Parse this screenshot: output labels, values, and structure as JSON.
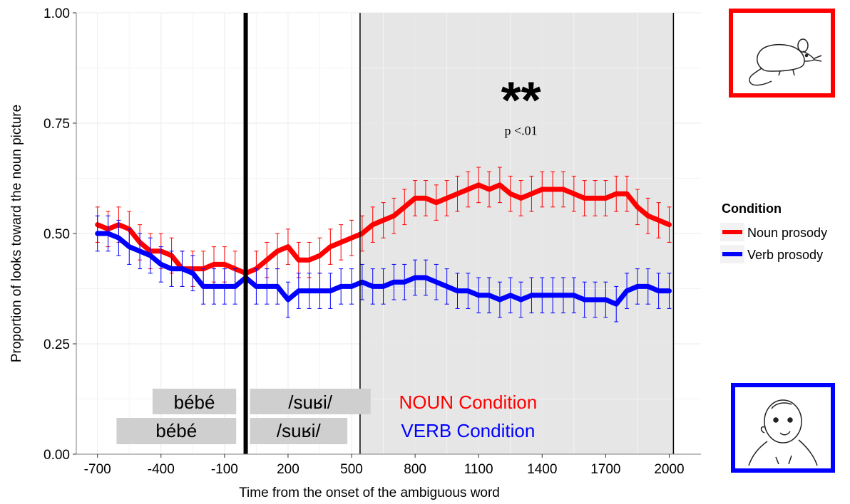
{
  "chart_data": {
    "type": "line",
    "xlabel": "Time from the onset of the ambiguous word",
    "ylabel": "Proportion of looks toward the noun picture",
    "xlim": [
      -800,
      2150
    ],
    "ylim": [
      0,
      1
    ],
    "xticks": [
      -700,
      -400,
      -100,
      200,
      500,
      800,
      1100,
      1400,
      1700,
      2000
    ],
    "yticks": [
      0,
      0.25,
      0.5,
      0.75,
      1
    ],
    "ytick_labels": [
      "0.00",
      "0.25",
      "0.50",
      "0.75",
      "1.00"
    ],
    "grid": true,
    "shaded_region": {
      "x_start": 540,
      "x_end": 2020,
      "color": "#e6e6e6"
    },
    "vertical_lines": [
      {
        "x": 0,
        "weight": "thick"
      },
      {
        "x": 540,
        "weight": "thin"
      },
      {
        "x": 2020,
        "weight": "thin"
      }
    ],
    "significance": {
      "stars": "**",
      "p_text": "p <.01",
      "x": 1300,
      "y": 0.82
    },
    "legend": {
      "title": "Condition",
      "placement": "right",
      "entries": [
        {
          "label": "Noun prosody",
          "color": "#ff0000"
        },
        {
          "label": "Verb prosody",
          "color": "#0000ff"
        }
      ]
    },
    "series": [
      {
        "name": "Noun prosody",
        "color": "#ff0000",
        "x": [
          -700,
          -650,
          -600,
          -550,
          -500,
          -450,
          -400,
          -350,
          -300,
          -250,
          -200,
          -150,
          -100,
          -50,
          0,
          50,
          100,
          150,
          200,
          250,
          300,
          350,
          400,
          450,
          500,
          550,
          600,
          650,
          700,
          750,
          800,
          850,
          900,
          950,
          1000,
          1050,
          1100,
          1150,
          1200,
          1250,
          1300,
          1350,
          1400,
          1450,
          1500,
          1550,
          1600,
          1650,
          1700,
          1750,
          1800,
          1850,
          1900,
          1950,
          2000
        ],
        "y": [
          0.52,
          0.51,
          0.52,
          0.51,
          0.48,
          0.46,
          0.46,
          0.45,
          0.42,
          0.42,
          0.42,
          0.43,
          0.43,
          0.42,
          0.41,
          0.42,
          0.44,
          0.46,
          0.47,
          0.44,
          0.44,
          0.45,
          0.47,
          0.48,
          0.49,
          0.5,
          0.52,
          0.53,
          0.54,
          0.56,
          0.58,
          0.58,
          0.57,
          0.58,
          0.59,
          0.6,
          0.61,
          0.6,
          0.61,
          0.59,
          0.58,
          0.59,
          0.6,
          0.6,
          0.6,
          0.59,
          0.58,
          0.58,
          0.58,
          0.59,
          0.59,
          0.56,
          0.54,
          0.53,
          0.52
        ],
        "error": 0.04
      },
      {
        "name": "Verb prosody",
        "color": "#0000ff",
        "x": [
          -700,
          -650,
          -600,
          -550,
          -500,
          -450,
          -400,
          -350,
          -300,
          -250,
          -200,
          -150,
          -100,
          -50,
          0,
          50,
          100,
          150,
          200,
          250,
          300,
          350,
          400,
          450,
          500,
          550,
          600,
          650,
          700,
          750,
          800,
          850,
          900,
          950,
          1000,
          1050,
          1100,
          1150,
          1200,
          1250,
          1300,
          1350,
          1400,
          1450,
          1500,
          1550,
          1600,
          1650,
          1700,
          1750,
          1800,
          1850,
          1900,
          1950,
          2000
        ],
        "y": [
          0.5,
          0.5,
          0.49,
          0.47,
          0.46,
          0.45,
          0.43,
          0.42,
          0.42,
          0.41,
          0.38,
          0.38,
          0.38,
          0.38,
          0.4,
          0.38,
          0.38,
          0.38,
          0.35,
          0.37,
          0.37,
          0.37,
          0.37,
          0.38,
          0.38,
          0.39,
          0.38,
          0.38,
          0.39,
          0.39,
          0.4,
          0.4,
          0.39,
          0.38,
          0.37,
          0.37,
          0.36,
          0.36,
          0.35,
          0.36,
          0.35,
          0.36,
          0.36,
          0.36,
          0.36,
          0.36,
          0.35,
          0.35,
          0.35,
          0.34,
          0.37,
          0.38,
          0.38,
          0.37,
          0.37
        ],
        "error": 0.04
      }
    ],
    "annotations": [
      {
        "id": "noun-row-1",
        "text": "bébé",
        "x_start": -440,
        "x_end": -45,
        "row": 1,
        "box": true
      },
      {
        "id": "noun-row-2",
        "text": "/suʁi/",
        "x_start": 20,
        "x_end": 590,
        "row": 1,
        "box": true
      },
      {
        "id": "verb-row-1",
        "text": "bébé",
        "x_start": -610,
        "x_end": -45,
        "row": 2,
        "box": true
      },
      {
        "id": "verb-row-2",
        "text": "/suʁi/",
        "x_start": 20,
        "x_end": 480,
        "row": 2,
        "box": true
      },
      {
        "id": "noun-condition",
        "text": "NOUN Condition",
        "x_center": 1050,
        "row": 1,
        "color": "#ff0000"
      },
      {
        "id": "verb-condition",
        "text": "VERB Condition",
        "x_center": 1050,
        "row": 2,
        "color": "#0000ff"
      }
    ]
  },
  "side_images": [
    {
      "name": "mouse-picture",
      "border_color": "#ff0000"
    },
    {
      "name": "baby-picture",
      "border_color": "#0000ff"
    }
  ]
}
